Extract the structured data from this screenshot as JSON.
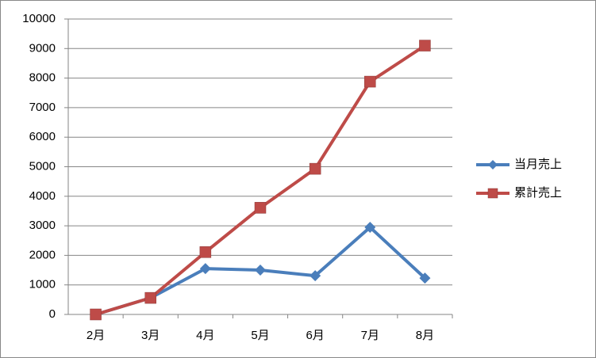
{
  "chart_data": {
    "type": "line",
    "categories": [
      "2月",
      "3月",
      "4月",
      "5月",
      "6月",
      "7月",
      "8月"
    ],
    "series": [
      {
        "name": "当月売上",
        "color": "#4a7ebb",
        "marker": "diamond",
        "values": [
          0,
          560,
          1550,
          1500,
          1310,
          2950,
          1230
        ]
      },
      {
        "name": "累計売上",
        "color": "#be4b48",
        "marker": "square",
        "values": [
          0,
          560,
          2110,
          3610,
          4930,
          7880,
          9100
        ]
      }
    ],
    "ylim": [
      0,
      10000
    ],
    "yticks": [
      0,
      1000,
      2000,
      3000,
      4000,
      5000,
      6000,
      7000,
      8000,
      9000,
      10000
    ],
    "grid": true,
    "legend": "right"
  }
}
